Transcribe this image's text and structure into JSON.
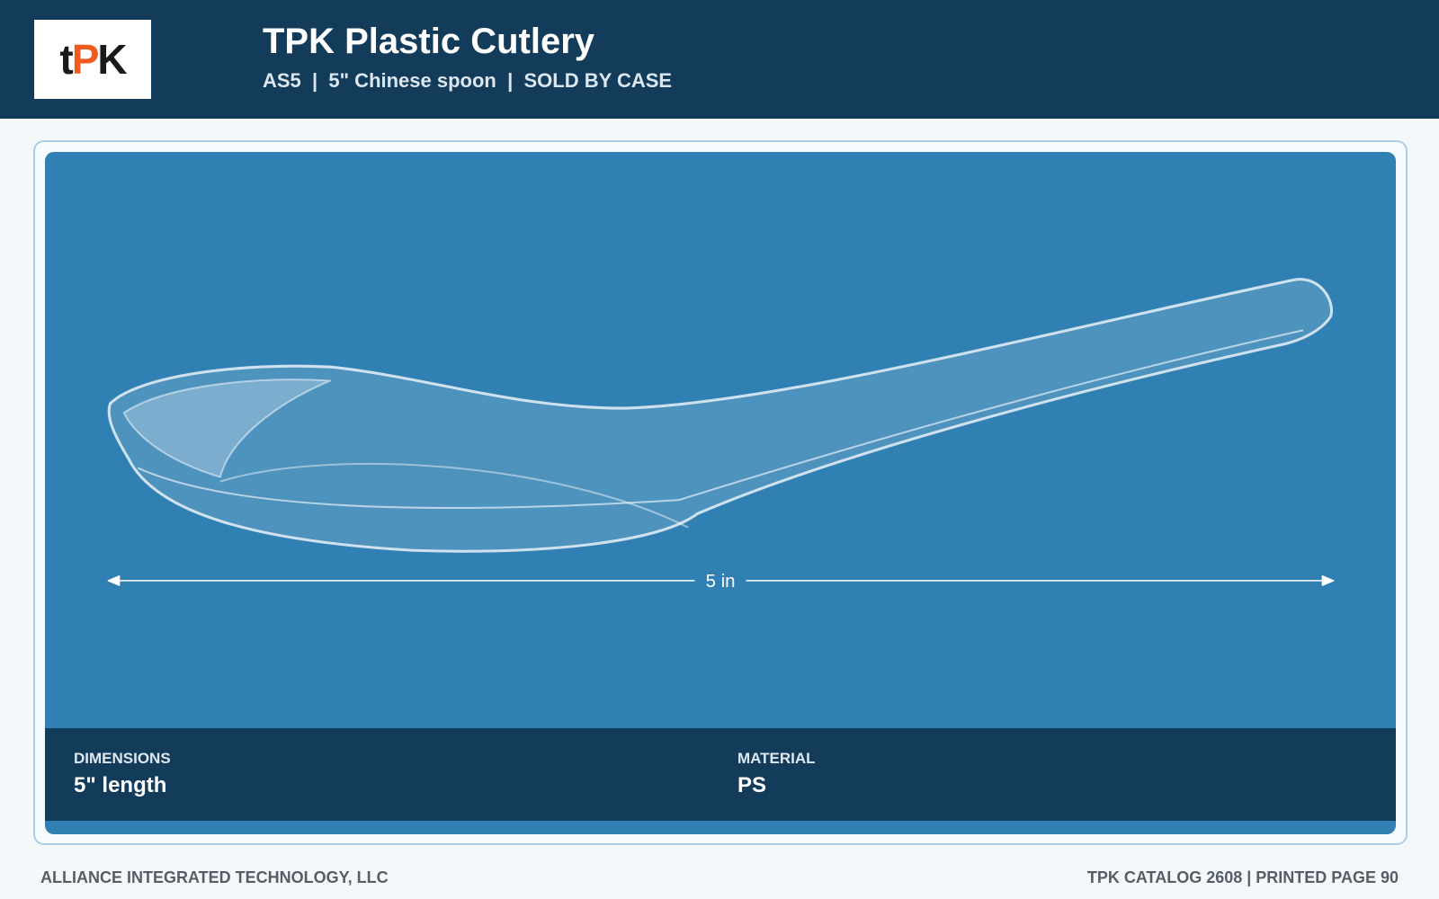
{
  "header": {
    "logo": [
      "t",
      "P",
      "K"
    ],
    "title": "TPK Plastic Cutlery",
    "subtitle": "AS5  |  5\" Chinese spoon  |  SOLD BY CASE"
  },
  "product": {
    "dimension_label": "5 in"
  },
  "specs": [
    {
      "label": "DIMENSIONS",
      "value": "5\" length"
    },
    {
      "label": "MATERIAL",
      "value": "PS"
    }
  ],
  "footer": {
    "left": "ALLIANCE INTEGRATED TECHNOLOGY, LLC",
    "right": "TPK CATALOG 2608 | PRINTED PAGE 90"
  }
}
